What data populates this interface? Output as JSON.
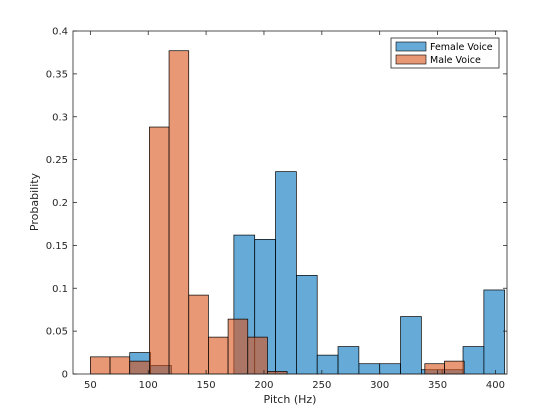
{
  "chart_data": {
    "type": "bar",
    "title": "",
    "xlabel": "Pitch (Hz)",
    "ylabel": "Probability",
    "xlim": [
      35,
      410
    ],
    "ylim": [
      0,
      0.4
    ],
    "xticks": [
      50,
      100,
      150,
      200,
      250,
      300,
      350,
      400
    ],
    "yticks": [
      0,
      0.05,
      0.1,
      0.15,
      0.2,
      0.25,
      0.3,
      0.35,
      0.4
    ],
    "xtick_labels": [
      "50",
      "100",
      "150",
      "200",
      "250",
      "300",
      "350",
      "400"
    ],
    "ytick_labels": [
      "0",
      "0.05",
      "0.1",
      "0.15",
      "0.2",
      "0.25",
      "0.3",
      "0.35",
      "0.4"
    ],
    "grid": false,
    "legend_position": "top-right",
    "series": [
      {
        "name": "Female Voice",
        "color": "#0072BD",
        "bin_width": 18,
        "bins": [
          {
            "start": 84,
            "value": 0.025
          },
          {
            "start": 102,
            "value": 0.01
          },
          {
            "start": 174,
            "value": 0.162
          },
          {
            "start": 192,
            "value": 0.157
          },
          {
            "start": 210,
            "value": 0.236
          },
          {
            "start": 228,
            "value": 0.115
          },
          {
            "start": 246,
            "value": 0.022
          },
          {
            "start": 264,
            "value": 0.032
          },
          {
            "start": 282,
            "value": 0.012
          },
          {
            "start": 300,
            "value": 0.012
          },
          {
            "start": 318,
            "value": 0.067
          },
          {
            "start": 336,
            "value": 0.005
          },
          {
            "start": 354,
            "value": 0.005
          },
          {
            "start": 372,
            "value": 0.032
          },
          {
            "start": 390,
            "value": 0.098
          }
        ]
      },
      {
        "name": "Male Voice",
        "color": "#D95319",
        "bin_width": 17,
        "bins": [
          {
            "start": 50,
            "value": 0.02
          },
          {
            "start": 67,
            "value": 0.02
          },
          {
            "start": 84,
            "value": 0.015
          },
          {
            "start": 101,
            "value": 0.288
          },
          {
            "start": 118,
            "value": 0.377
          },
          {
            "start": 135,
            "value": 0.092
          },
          {
            "start": 152,
            "value": 0.043
          },
          {
            "start": 169,
            "value": 0.064
          },
          {
            "start": 186,
            "value": 0.043
          },
          {
            "start": 203,
            "value": 0.003
          },
          {
            "start": 339,
            "value": 0.012
          },
          {
            "start": 356,
            "value": 0.015
          }
        ]
      }
    ]
  }
}
